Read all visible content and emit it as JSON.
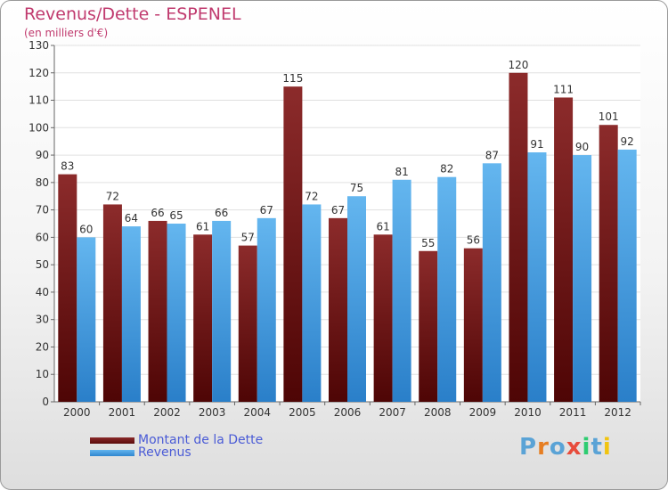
{
  "header": {
    "title": "Revenus/Dette - ESPENEL",
    "subtitle": "(en milliers d'€)"
  },
  "chart_data": {
    "type": "bar",
    "categories": [
      "2000",
      "2001",
      "2002",
      "2003",
      "2004",
      "2005",
      "2006",
      "2007",
      "2008",
      "2009",
      "2010",
      "2011",
      "2012"
    ],
    "series": [
      {
        "name": "Montant de la Dette",
        "color": "#7a1c1c",
        "values": [
          83,
          72,
          66,
          61,
          57,
          115,
          67,
          61,
          55,
          56,
          120,
          111,
          101
        ]
      },
      {
        "name": "Revenus",
        "color": "#4aa3e8",
        "values": [
          60,
          64,
          65,
          66,
          67,
          72,
          75,
          81,
          82,
          87,
          91,
          90,
          92
        ]
      }
    ],
    "ylim": [
      0,
      130
    ],
    "yticks": [
      0,
      10,
      20,
      30,
      40,
      50,
      60,
      70,
      80,
      90,
      100,
      110,
      120,
      130
    ],
    "grid": true,
    "legend_position": "bottom-left"
  },
  "legend": {
    "items": [
      {
        "label": "Montant de la Dette",
        "color": "#6b0f0f"
      },
      {
        "label": "Revenus",
        "color": "#4aa3e8"
      }
    ]
  },
  "brand": {
    "letters": [
      "P",
      "r",
      "o",
      "x",
      "i",
      "t",
      "i"
    ],
    "colors": [
      "#5aa3d6",
      "#e67e22",
      "#5aa3d6",
      "#e74c3c",
      "#2ecc71",
      "#5aa3d6",
      "#f1c40f"
    ]
  }
}
